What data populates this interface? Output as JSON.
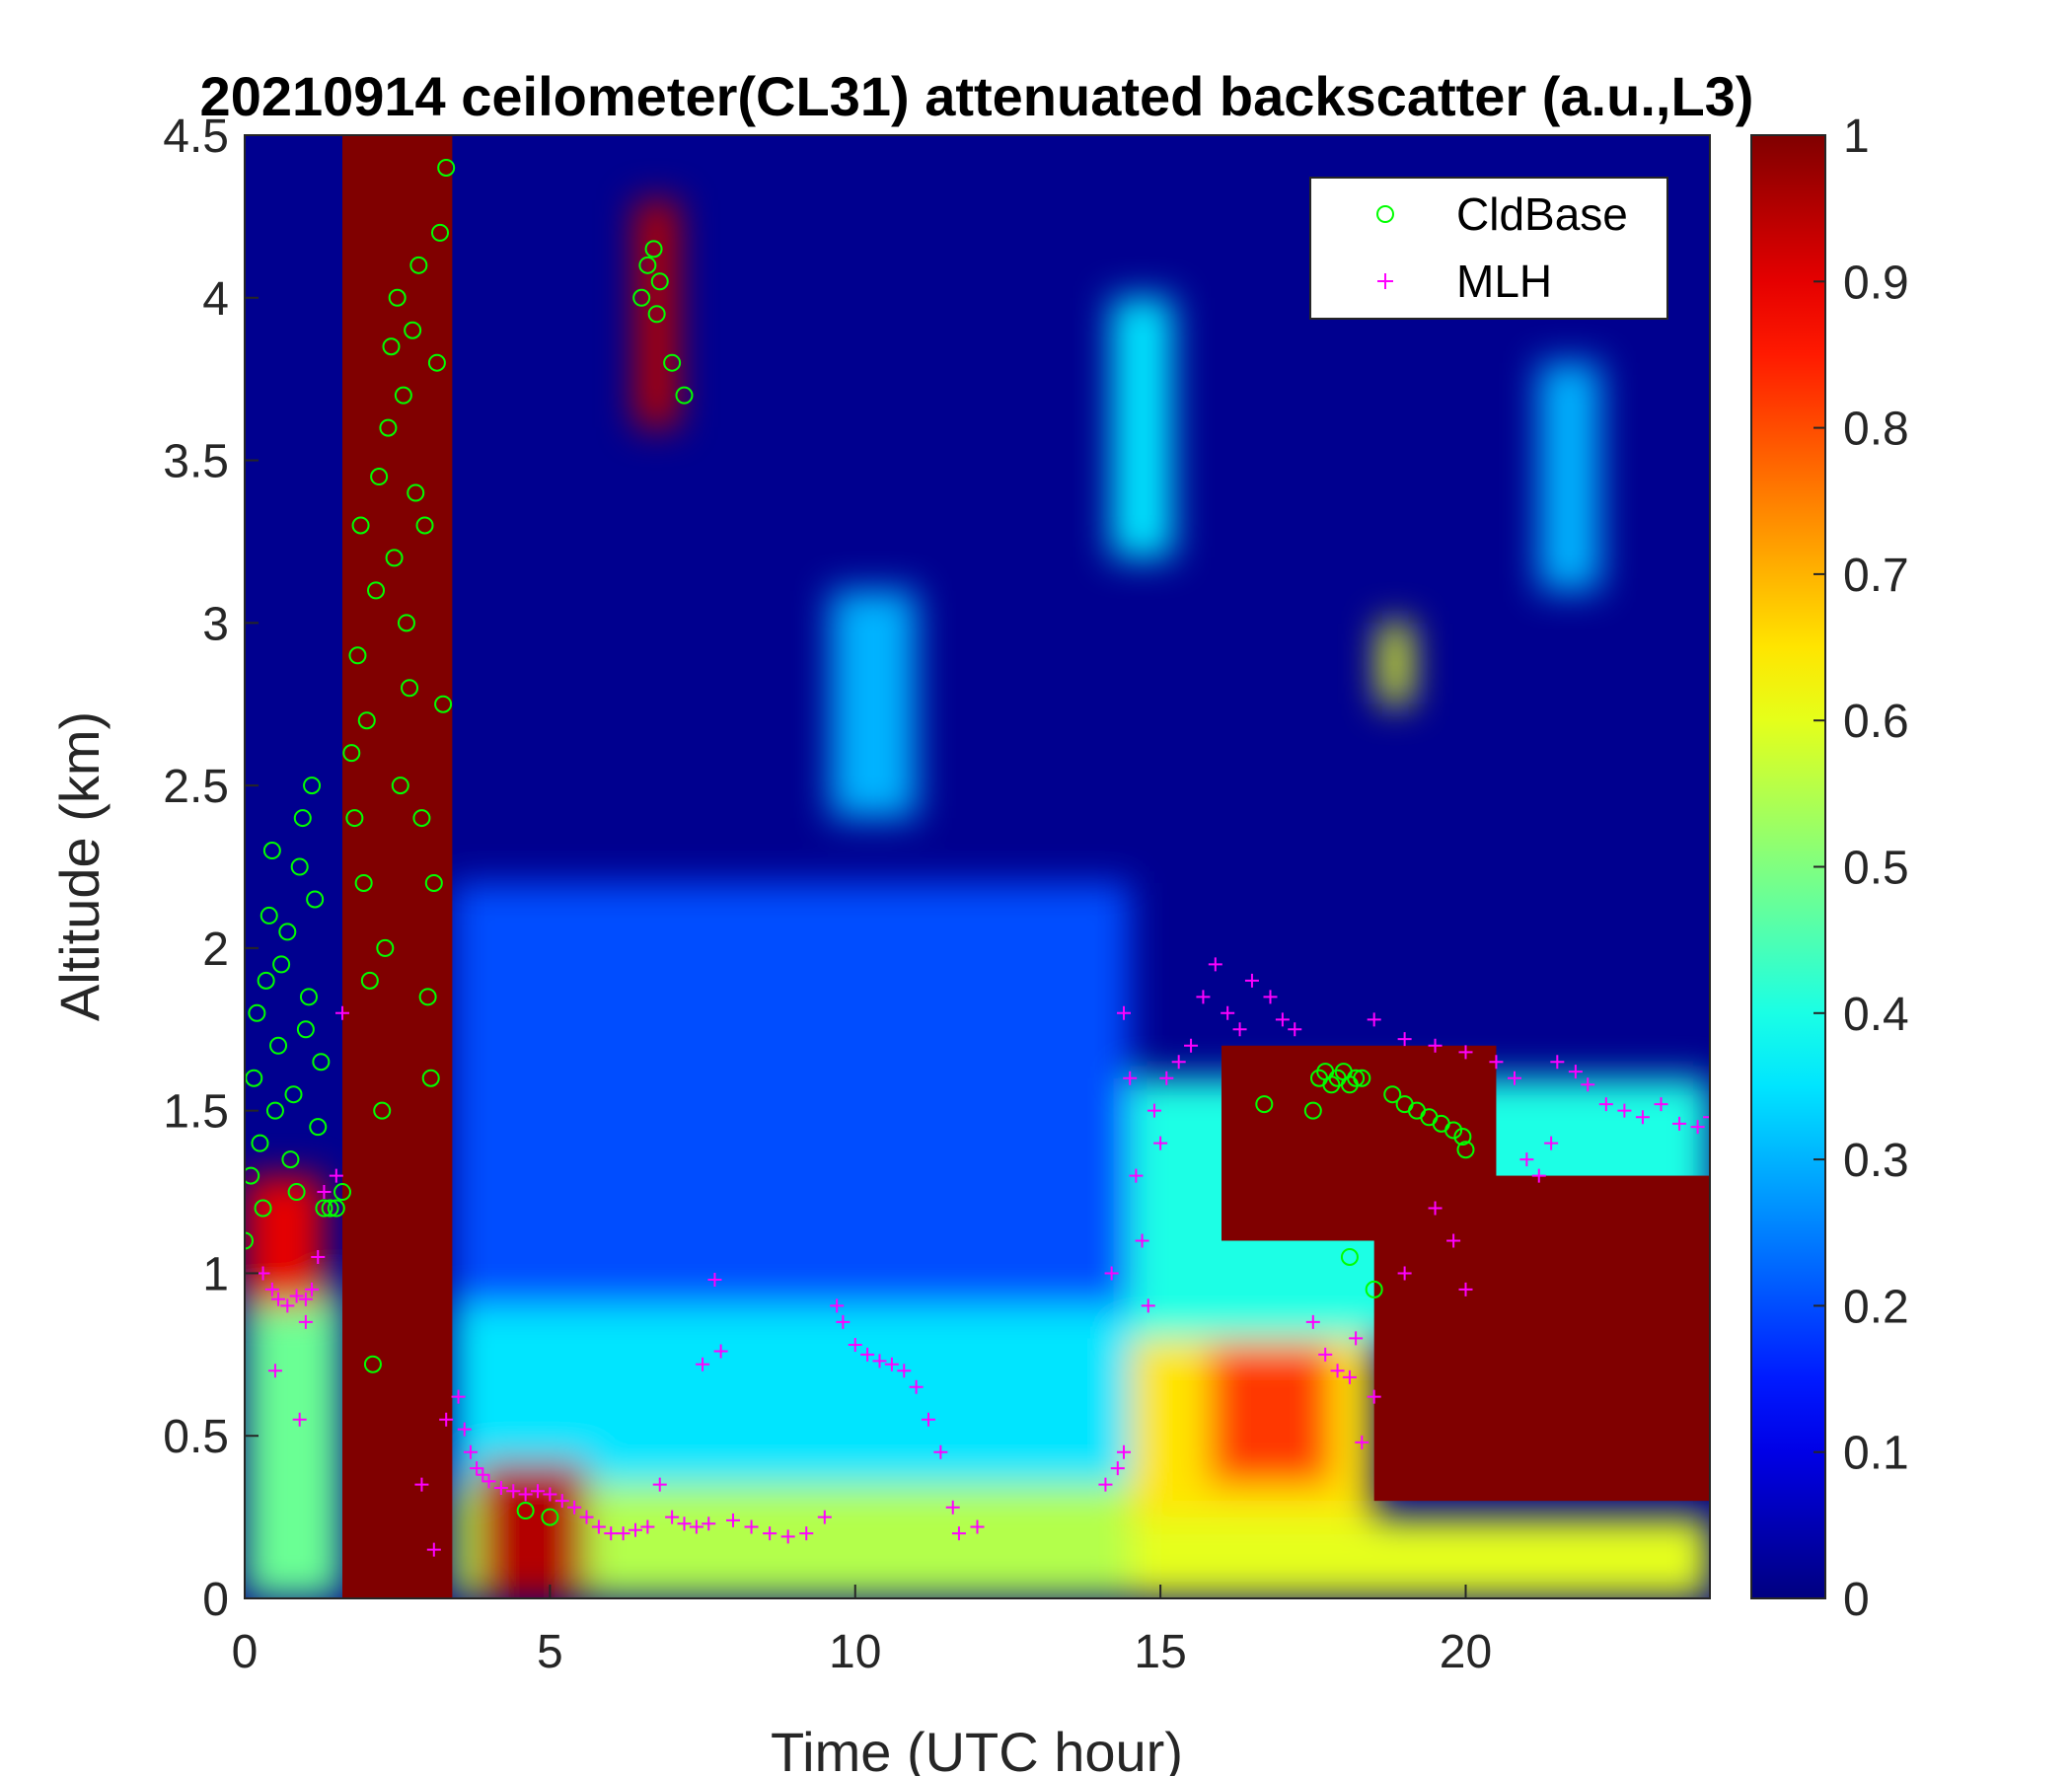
{
  "chart_data": {
    "type": "heatmap",
    "title": "20210914 ceilometer(CL31) attenuated backscatter (a.u.,L3)",
    "xlabel": "Time (UTC hour)",
    "ylabel": "Altitude (km)",
    "xlim": [
      0,
      24
    ],
    "ylim": [
      0,
      4.5
    ],
    "xticks": [
      "0",
      "5",
      "10",
      "15",
      "20"
    ],
    "xtick_values": [
      0,
      5,
      10,
      15,
      20
    ],
    "yticks": [
      "0",
      "0.5",
      "1",
      "1.5",
      "2",
      "2.5",
      "3",
      "3.5",
      "4",
      "4.5"
    ],
    "ytick_values": [
      0,
      0.5,
      1,
      1.5,
      2,
      2.5,
      3,
      3.5,
      4,
      4.5
    ],
    "colorbar": {
      "colormap": "jet",
      "range": [
        0,
        1
      ],
      "ticks": [
        "0",
        "0.1",
        "0.2",
        "0.3",
        "0.4",
        "0.5",
        "0.6",
        "0.7",
        "0.8",
        "0.9",
        "1"
      ],
      "tick_values": [
        0,
        0.1,
        0.2,
        0.3,
        0.4,
        0.5,
        0.6,
        0.7,
        0.8,
        0.9,
        1
      ]
    },
    "legend": {
      "placement": "top-right",
      "entries": [
        {
          "label": "CldBase",
          "marker": "circle",
          "color": "#00ff00"
        },
        {
          "label": "MLH",
          "marker": "plus",
          "color": "#ff00ff"
        }
      ]
    },
    "features": [
      {
        "x0": 0.0,
        "x1": 1.6,
        "y0": 0.0,
        "y1": 0.95,
        "value": 0.48
      },
      {
        "x0": 0.0,
        "x1": 1.3,
        "y0": 0.9,
        "y1": 1.3,
        "value": 0.9
      },
      {
        "x0": 1.6,
        "x1": 3.4,
        "y0": 0.0,
        "y1": 4.5,
        "value": 1.0
      },
      {
        "x0": 3.4,
        "x1": 14.5,
        "y0": 0.0,
        "y1": 0.35,
        "value": 0.55
      },
      {
        "x0": 3.4,
        "x1": 14.5,
        "y0": 0.35,
        "y1": 0.9,
        "value": 0.35
      },
      {
        "x0": 3.4,
        "x1": 14.5,
        "y0": 0.9,
        "y1": 2.2,
        "value": 0.2
      },
      {
        "x0": 3.8,
        "x1": 5.6,
        "y0": 0.0,
        "y1": 0.42,
        "value": 0.95
      },
      {
        "x0": 6.4,
        "x1": 7.1,
        "y0": 3.6,
        "y1": 4.3,
        "value": 0.95
      },
      {
        "x0": 9.6,
        "x1": 11.0,
        "y0": 2.4,
        "y1": 3.1,
        "value": 0.3
      },
      {
        "x0": 14.5,
        "x1": 24.0,
        "y0": 0.0,
        "y1": 0.25,
        "value": 0.6
      },
      {
        "x0": 14.5,
        "x1": 18.5,
        "y0": 0.25,
        "y1": 0.8,
        "value": 0.65
      },
      {
        "x0": 15.8,
        "x1": 17.8,
        "y0": 0.35,
        "y1": 0.78,
        "value": 0.82
      },
      {
        "x0": 14.5,
        "x1": 24.0,
        "y0": 0.8,
        "y1": 1.6,
        "value": 0.4
      },
      {
        "x0": 16.0,
        "x1": 20.5,
        "y0": 1.1,
        "y1": 1.7,
        "value": 1.0
      },
      {
        "x0": 18.5,
        "x1": 24.0,
        "y0": 0.3,
        "y1": 1.3,
        "value": 1.0
      },
      {
        "x0": 18.6,
        "x1": 19.1,
        "y0": 2.75,
        "y1": 3.0,
        "value": 0.6
      },
      {
        "x0": 14.2,
        "x1": 15.2,
        "y0": 3.2,
        "y1": 4.0,
        "value": 0.35
      },
      {
        "x0": 21.2,
        "x1": 22.2,
        "y0": 3.1,
        "y1": 3.8,
        "value": 0.3
      }
    ],
    "series": [
      {
        "name": "CldBase",
        "marker": "circle",
        "color": "#00ff00",
        "points": [
          [
            0.0,
            1.1
          ],
          [
            0.1,
            1.3
          ],
          [
            0.15,
            1.6
          ],
          [
            0.2,
            1.8
          ],
          [
            0.25,
            1.4
          ],
          [
            0.3,
            1.2
          ],
          [
            0.35,
            1.9
          ],
          [
            0.4,
            2.1
          ],
          [
            0.45,
            2.3
          ],
          [
            0.5,
            1.5
          ],
          [
            0.55,
            1.7
          ],
          [
            0.6,
            1.95
          ],
          [
            0.7,
            2.05
          ],
          [
            0.75,
            1.35
          ],
          [
            0.8,
            1.55
          ],
          [
            0.85,
            1.25
          ],
          [
            0.9,
            2.25
          ],
          [
            0.95,
            2.4
          ],
          [
            1.0,
            1.75
          ],
          [
            1.05,
            1.85
          ],
          [
            1.1,
            2.5
          ],
          [
            1.15,
            2.15
          ],
          [
            1.2,
            1.45
          ],
          [
            1.25,
            1.65
          ],
          [
            1.3,
            1.2
          ],
          [
            1.4,
            1.2
          ],
          [
            1.5,
            1.2
          ],
          [
            1.6,
            1.25
          ],
          [
            1.75,
            2.6
          ],
          [
            1.8,
            2.4
          ],
          [
            1.85,
            2.9
          ],
          [
            1.9,
            3.3
          ],
          [
            1.95,
            2.2
          ],
          [
            2.0,
            2.7
          ],
          [
            2.05,
            1.9
          ],
          [
            2.1,
            0.72
          ],
          [
            2.15,
            3.1
          ],
          [
            2.2,
            3.45
          ],
          [
            2.25,
            1.5
          ],
          [
            2.3,
            2.0
          ],
          [
            2.35,
            3.6
          ],
          [
            2.4,
            3.85
          ],
          [
            2.45,
            3.2
          ],
          [
            2.5,
            4.0
          ],
          [
            2.55,
            2.5
          ],
          [
            2.6,
            3.7
          ],
          [
            2.65,
            3.0
          ],
          [
            2.7,
            2.8
          ],
          [
            2.75,
            3.9
          ],
          [
            2.8,
            3.4
          ],
          [
            2.85,
            4.1
          ],
          [
            2.9,
            2.4
          ],
          [
            2.95,
            3.3
          ],
          [
            3.0,
            1.85
          ],
          [
            3.05,
            1.6
          ],
          [
            3.1,
            2.2
          ],
          [
            3.15,
            3.8
          ],
          [
            3.2,
            4.2
          ],
          [
            3.25,
            2.75
          ],
          [
            3.3,
            4.4
          ],
          [
            4.6,
            0.27
          ],
          [
            5.0,
            0.25
          ],
          [
            6.5,
            4.0
          ],
          [
            6.6,
            4.1
          ],
          [
            6.7,
            4.15
          ],
          [
            6.75,
            3.95
          ],
          [
            6.8,
            4.05
          ],
          [
            7.0,
            3.8
          ],
          [
            7.2,
            3.7
          ],
          [
            16.7,
            1.52
          ],
          [
            17.5,
            1.5
          ],
          [
            17.6,
            1.6
          ],
          [
            17.7,
            1.62
          ],
          [
            17.8,
            1.58
          ],
          [
            17.9,
            1.6
          ],
          [
            18.0,
            1.62
          ],
          [
            18.1,
            1.58
          ],
          [
            18.2,
            1.6
          ],
          [
            18.3,
            1.6
          ],
          [
            18.1,
            1.05
          ],
          [
            18.5,
            0.95
          ],
          [
            18.8,
            1.55
          ],
          [
            19.0,
            1.52
          ],
          [
            19.2,
            1.5
          ],
          [
            19.4,
            1.48
          ],
          [
            19.6,
            1.46
          ],
          [
            19.8,
            1.44
          ],
          [
            19.95,
            1.42
          ],
          [
            20.0,
            1.38
          ]
        ]
      },
      {
        "name": "MLH",
        "marker": "plus",
        "color": "#ff00ff",
        "points": [
          [
            0.3,
            1.0
          ],
          [
            0.45,
            0.95
          ],
          [
            0.55,
            0.92
          ],
          [
            0.7,
            0.9
          ],
          [
            0.85,
            0.93
          ],
          [
            1.0,
            0.92
          ],
          [
            1.1,
            0.95
          ],
          [
            0.5,
            0.7
          ],
          [
            0.9,
            0.55
          ],
          [
            1.0,
            0.85
          ],
          [
            1.2,
            1.05
          ],
          [
            1.3,
            1.25
          ],
          [
            1.5,
            1.3
          ],
          [
            1.6,
            1.8
          ],
          [
            2.9,
            0.35
          ],
          [
            3.1,
            0.15
          ],
          [
            3.3,
            0.55
          ],
          [
            3.5,
            0.62
          ],
          [
            3.6,
            0.52
          ],
          [
            3.7,
            0.45
          ],
          [
            3.8,
            0.4
          ],
          [
            3.9,
            0.38
          ],
          [
            4.0,
            0.36
          ],
          [
            4.2,
            0.34
          ],
          [
            4.4,
            0.33
          ],
          [
            4.6,
            0.32
          ],
          [
            4.8,
            0.33
          ],
          [
            5.0,
            0.32
          ],
          [
            5.2,
            0.3
          ],
          [
            5.4,
            0.28
          ],
          [
            5.6,
            0.25
          ],
          [
            5.8,
            0.22
          ],
          [
            6.0,
            0.2
          ],
          [
            6.2,
            0.2
          ],
          [
            6.4,
            0.21
          ],
          [
            6.6,
            0.22
          ],
          [
            6.8,
            0.35
          ],
          [
            7.0,
            0.25
          ],
          [
            7.2,
            0.23
          ],
          [
            7.4,
            0.22
          ],
          [
            7.6,
            0.23
          ],
          [
            7.7,
            0.98
          ],
          [
            7.5,
            0.72
          ],
          [
            7.8,
            0.76
          ],
          [
            8.0,
            0.24
          ],
          [
            8.3,
            0.22
          ],
          [
            8.6,
            0.2
          ],
          [
            8.9,
            0.19
          ],
          [
            9.2,
            0.2
          ],
          [
            9.5,
            0.25
          ],
          [
            9.7,
            0.9
          ],
          [
            9.8,
            0.85
          ],
          [
            10.0,
            0.78
          ],
          [
            10.2,
            0.75
          ],
          [
            10.4,
            0.73
          ],
          [
            10.6,
            0.72
          ],
          [
            10.8,
            0.7
          ],
          [
            11.0,
            0.65
          ],
          [
            11.2,
            0.55
          ],
          [
            11.4,
            0.45
          ],
          [
            11.6,
            0.28
          ],
          [
            11.7,
            0.2
          ],
          [
            12.0,
            0.22
          ],
          [
            14.1,
            0.35
          ],
          [
            14.3,
            0.4
          ],
          [
            14.4,
            0.45
          ],
          [
            14.2,
            1.0
          ],
          [
            14.4,
            1.8
          ],
          [
            14.5,
            1.6
          ],
          [
            14.6,
            1.3
          ],
          [
            14.7,
            1.1
          ],
          [
            14.8,
            0.9
          ],
          [
            14.9,
            1.5
          ],
          [
            15.0,
            1.4
          ],
          [
            15.1,
            1.6
          ],
          [
            15.3,
            1.65
          ],
          [
            15.5,
            1.7
          ],
          [
            15.7,
            1.85
          ],
          [
            15.9,
            1.95
          ],
          [
            16.1,
            1.8
          ],
          [
            16.3,
            1.75
          ],
          [
            16.5,
            1.9
          ],
          [
            16.8,
            1.85
          ],
          [
            17.0,
            1.78
          ],
          [
            17.2,
            1.75
          ],
          [
            17.5,
            0.85
          ],
          [
            17.7,
            0.75
          ],
          [
            17.9,
            0.7
          ],
          [
            18.1,
            0.68
          ],
          [
            18.2,
            0.8
          ],
          [
            18.3,
            0.48
          ],
          [
            18.5,
            0.62
          ],
          [
            18.5,
            1.78
          ],
          [
            19.0,
            1.72
          ],
          [
            19.5,
            1.7
          ],
          [
            20.0,
            1.68
          ],
          [
            20.5,
            1.65
          ],
          [
            20.8,
            1.6
          ],
          [
            21.0,
            1.35
          ],
          [
            21.2,
            1.3
          ],
          [
            21.4,
            1.4
          ],
          [
            21.5,
            1.65
          ],
          [
            21.8,
            1.62
          ],
          [
            22.0,
            1.58
          ],
          [
            22.3,
            1.52
          ],
          [
            22.6,
            1.5
          ],
          [
            22.9,
            1.48
          ],
          [
            23.2,
            1.52
          ],
          [
            23.5,
            1.46
          ],
          [
            23.8,
            1.45
          ],
          [
            24.0,
            1.48
          ],
          [
            19.5,
            1.2
          ],
          [
            19.8,
            1.1
          ],
          [
            20.0,
            0.95
          ],
          [
            19.0,
            1.0
          ]
        ]
      }
    ]
  }
}
